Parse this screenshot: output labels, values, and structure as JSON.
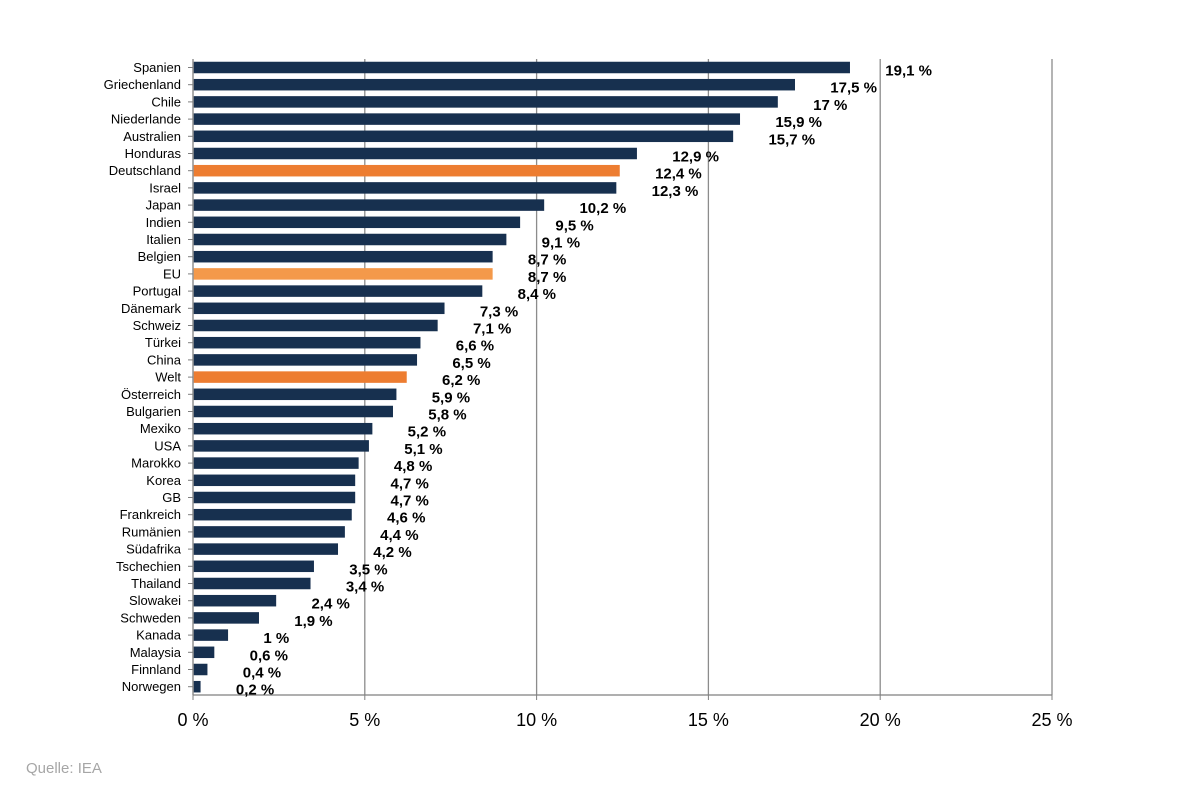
{
  "chart_data": {
    "type": "bar",
    "orientation": "horizontal",
    "categories": [
      "Spanien",
      "Griechenland",
      "Chile",
      "Niederlande",
      "Australien",
      "Honduras",
      "Deutschland",
      "Israel",
      "Japan",
      "Indien",
      "Italien",
      "Belgien",
      "EU",
      "Portugal",
      "Dänemark",
      "Schweiz",
      "Türkei",
      "China",
      "Welt",
      "Österreich",
      "Bulgarien",
      "Mexiko",
      "USA",
      "Marokko",
      "Korea",
      "GB",
      "Frankreich",
      "Rumänien",
      "Südafrika",
      "Tschechien",
      "Thailand",
      "Slowakei",
      "Schweden",
      "Kanada",
      "Malaysia",
      "Finnland",
      "Norwegen"
    ],
    "values": [
      19.1,
      17.5,
      17,
      15.9,
      15.7,
      12.9,
      12.4,
      12.3,
      10.2,
      9.5,
      9.1,
      8.7,
      8.7,
      8.4,
      7.3,
      7.1,
      6.6,
      6.5,
      6.2,
      5.9,
      5.8,
      5.2,
      5.1,
      4.8,
      4.7,
      4.7,
      4.6,
      4.4,
      4.2,
      3.5,
      3.4,
      2.4,
      1.9,
      1,
      0.6,
      0.4,
      0.2
    ],
    "value_labels": [
      "19,1 %",
      "17,5 %",
      "17 %",
      "15,9 %",
      "15,7 %",
      "12,9 %",
      "12,4 %",
      "12,3 %",
      "10,2 %",
      "9,5 %",
      "9,1 %",
      "8,7 %",
      "8,7 %",
      "8,4 %",
      "7,3 %",
      "7,1 %",
      "6,6 %",
      "6,5 %",
      "6,2 %",
      "5,9 %",
      "5,8 %",
      "5,2 %",
      "5,1 %",
      "4,8 %",
      "4,7 %",
      "4,7 %",
      "4,6 %",
      "4,4 %",
      "4,2 %",
      "3,5 %",
      "3,4 %",
      "2,4 %",
      "1,9 %",
      "1 %",
      "0,6 %",
      "0,4 %",
      "0,2 %"
    ],
    "bar_colors": [
      "#17304f",
      "#17304f",
      "#17304f",
      "#17304f",
      "#17304f",
      "#17304f",
      "#ed7d31",
      "#17304f",
      "#17304f",
      "#17304f",
      "#17304f",
      "#17304f",
      "#f4994a",
      "#17304f",
      "#17304f",
      "#17304f",
      "#17304f",
      "#17304f",
      "#ed7d31",
      "#17304f",
      "#17304f",
      "#17304f",
      "#17304f",
      "#17304f",
      "#17304f",
      "#17304f",
      "#17304f",
      "#17304f",
      "#17304f",
      "#17304f",
      "#17304f",
      "#17304f",
      "#17304f",
      "#17304f",
      "#17304f",
      "#17304f",
      "#17304f"
    ],
    "xlim": [
      0,
      25
    ],
    "x_ticks": [
      0,
      5,
      10,
      15,
      20,
      25
    ],
    "x_tick_labels": [
      "0 %",
      "5 %",
      "10 %",
      "15 %",
      "20 %",
      "25 %"
    ],
    "grid": "vertical",
    "title": "",
    "xlabel": "",
    "ylabel": ""
  },
  "source": "Quelle: IEA"
}
